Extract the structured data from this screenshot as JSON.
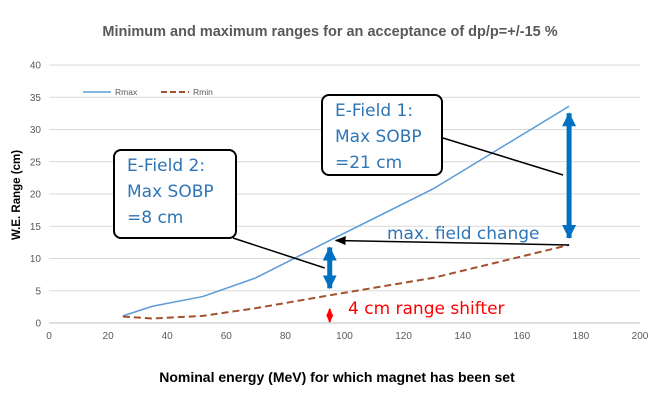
{
  "chart_data": {
    "type": "line",
    "title": "Minimum and maximum ranges for an  acceptance of dp/p=+/-15 %",
    "xlabel": "Nominal energy  (MeV) for which magnet has been set",
    "ylabel": "W.E. Range (cm)",
    "xlim": [
      0,
      200
    ],
    "ylim": [
      0,
      40
    ],
    "xticks": [
      0,
      20,
      40,
      60,
      80,
      100,
      120,
      140,
      160,
      180,
      200
    ],
    "yticks": [
      0,
      5,
      10,
      15,
      20,
      25,
      30,
      35,
      40
    ],
    "grid": true,
    "legend_position": "top-left",
    "series": [
      {
        "name": "Rmax",
        "color": "#5b9bd5",
        "style": "solid",
        "x": [
          25,
          35,
          52,
          70,
          95,
          130,
          176
        ],
        "y": [
          1.1,
          2.6,
          4.1,
          7.0,
          12.8,
          20.8,
          33.6
        ]
      },
      {
        "name": "Rmin",
        "color": "#a0522d",
        "style": "dashed",
        "x": [
          25,
          35,
          52,
          70,
          95,
          130,
          176
        ],
        "y": [
          1.0,
          0.7,
          1.1,
          2.3,
          4.3,
          7.0,
          12.1
        ]
      }
    ],
    "annotations": {
      "efield1": {
        "lines": [
          "E-Field 1:",
          "Max SOBP",
          "=21 cm"
        ],
        "color": "#2e75b6"
      },
      "efield2": {
        "lines": [
          "E-Field 2:",
          "Max SOBP",
          "=8 cm"
        ],
        "color": "#2e75b6"
      },
      "field_change": {
        "text": "max. field change",
        "color": "#2e75b6"
      },
      "range_shifter": {
        "text": "4 cm range shifter",
        "color": "#ff0000"
      },
      "sobp1_arrow": {
        "x": 176,
        "y_from": 12.1,
        "y_to": 33.6,
        "color": "#0070c0"
      },
      "sobp2_arrow": {
        "x": 95,
        "y_from": 4.3,
        "y_to": 12.8,
        "color": "#0070c0"
      },
      "field_change_arrow": {
        "x_from": 176,
        "x_to": 95,
        "y": 12.1,
        "color": "#000000"
      },
      "range_shifter_arrow": {
        "x": 95,
        "y_from": 0,
        "y_to": 3,
        "color": "#ff0000"
      }
    }
  }
}
